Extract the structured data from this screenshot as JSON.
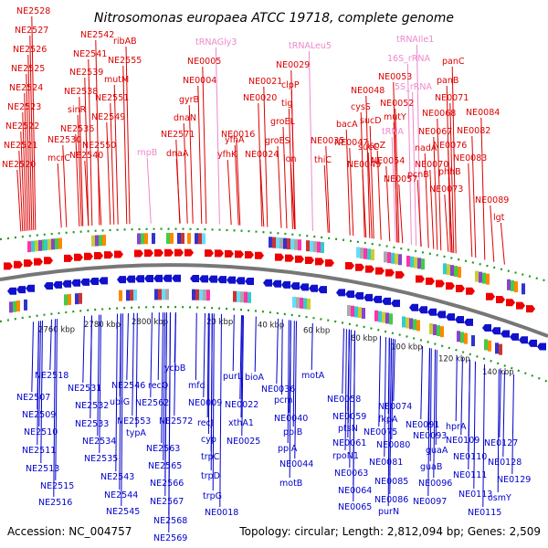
{
  "title": "Nitrosomonas europaea ATCC 19718, complete genome",
  "footer": {
    "accession": "Accession: NC_004757",
    "topology": "Topology: circular; Length: 2,812,094 bp; Genes: 2,509"
  },
  "colors": {
    "forward_label": "#dd0000",
    "rna_label": "#ee88cc",
    "reverse_label": "#0000cc",
    "forward_arrow": "#ee0000",
    "reverse_arrow": "#1111cc",
    "backbone": "#777777",
    "tick_dots": "#229922"
  },
  "kbp_ticks": [
    "2760 kbp",
    "2780 kbp",
    "2800 kbp",
    "20 kbp",
    "40 kbp",
    "60 kbp",
    "80 kbp",
    "100 kbp",
    "120 kbp",
    "140 kbp"
  ],
  "forward_labels": [
    "NE2528",
    "NE2527",
    "NE2526",
    "NE2525",
    "NE2524",
    "NE2523",
    "NE2522",
    "NE2521",
    "NE2520",
    "NE2542",
    "NE2541",
    "NE2539",
    "NE2538",
    "sinR",
    "NE2536",
    "NE2530",
    "mcrC",
    "NE2540",
    "ribAB",
    "NE2555",
    "mutM",
    "NE2551",
    "NE2549",
    "NE2550",
    "rnpB",
    "NE2571",
    "dnaA",
    "tRNAGly3",
    "NE0005",
    "NE0004",
    "gyrB",
    "dnaN",
    "yfhA",
    "yfhK",
    "NE0016",
    "NE0020",
    "NE0021",
    "NE0024",
    "tRNALeu5",
    "NE0029",
    "clpP",
    "tig",
    "groEL",
    "groES",
    "lon",
    "NE0035",
    "thiC",
    "bacA",
    "NE0047",
    "cysS",
    "NE0048",
    "NE0049",
    "tRNAIle1",
    "16S_rRNA",
    "NE0053",
    "NE0052",
    "5S_rRNA",
    "sucD",
    "sucC",
    "tRNA",
    "ispZ",
    "mutY",
    "NE0054",
    "NE0057",
    "panC",
    "panB",
    "NE0071",
    "NE0068",
    "NE0067",
    "nadA",
    "NE0070",
    "pcnB",
    "NE0076",
    "NE0084",
    "NE0082",
    "phhB",
    "NE0083",
    "NE0073",
    "NE0089",
    "lgt"
  ],
  "reverse_labels": [
    "NE2518",
    "NE2507",
    "NE2509",
    "NE2510",
    "NE2511",
    "NE2513",
    "NE2515",
    "NE2516",
    "NE2531",
    "NE2532",
    "NE2533",
    "NE2534",
    "NE2535",
    "NE2543",
    "NE2544",
    "NE2545",
    "NE2546",
    "ubiG",
    "recQ",
    "NE2553",
    "typA",
    "NE2562",
    "ycbB",
    "NE2572",
    "NE2563",
    "NE2565",
    "NE2566",
    "NE2567",
    "NE2568",
    "NE2569",
    "mfd",
    "NE0009",
    "recJ",
    "cyp",
    "trpC",
    "trpD",
    "trpG",
    "NE0018",
    "purL",
    "NE0022",
    "bioA",
    "xthA1",
    "NE0025",
    "NE0036",
    "pcm",
    "NE0040",
    "ppiB",
    "ppiA",
    "NE0044",
    "motB",
    "motA",
    "NE0058",
    "NE0059",
    "ptsN",
    "NE0061",
    "rpoN1",
    "NE0063",
    "NE0064",
    "NE0065",
    "NE0074",
    "fkpA",
    "NE0075",
    "NE0080",
    "NE0081",
    "NE0085",
    "NE0086",
    "purN",
    "NE0091",
    "NE0093",
    "guaA",
    "guaB",
    "NE0096",
    "NE0097",
    "hprA",
    "NE0109",
    "NE0110",
    "NE0111",
    "NE0113",
    "NE0115",
    "NE0127",
    "NE0128",
    "NE0129",
    "osmY"
  ]
}
